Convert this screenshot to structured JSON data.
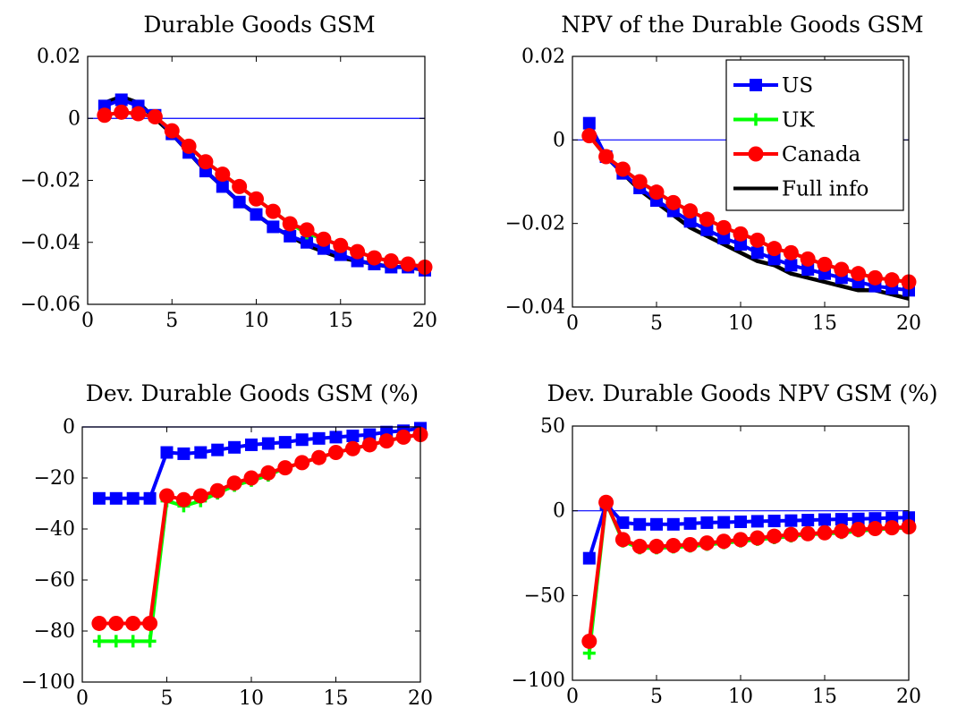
{
  "colors": {
    "US": "#0000ff",
    "UK": "#00ff00",
    "Canada": "#ff0000",
    "Full info": "#000000",
    "zero_line": "#0000ff"
  },
  "legend": {
    "placement": "top-right of second panel",
    "entries": [
      {
        "name": "US",
        "marker": "square"
      },
      {
        "name": "UK",
        "marker": "plus"
      },
      {
        "name": "Canada",
        "marker": "circle"
      },
      {
        "name": "Full info",
        "marker": "none"
      }
    ]
  },
  "chart_data": [
    {
      "type": "line",
      "title": "Durable Goods GSM",
      "xlim": [
        0,
        20
      ],
      "ylim": [
        -0.06,
        0.02
      ],
      "xticks": [
        0,
        5,
        10,
        15,
        20
      ],
      "yticks": [
        -0.06,
        -0.04,
        -0.02,
        0,
        0.02
      ],
      "ytick_labels": [
        "−0.06",
        "−0.04",
        "−0.02",
        "0",
        "0.02"
      ],
      "x": [
        1,
        2,
        3,
        4,
        5,
        6,
        7,
        8,
        9,
        10,
        11,
        12,
        13,
        14,
        15,
        16,
        17,
        18,
        19,
        20
      ],
      "series": [
        {
          "name": "Full info",
          "values": [
            0.005,
            0.007,
            0.005,
            0.0,
            -0.005,
            -0.011,
            -0.017,
            -0.022,
            -0.027,
            -0.031,
            -0.035,
            -0.038,
            -0.041,
            -0.043,
            -0.045,
            -0.046,
            -0.047,
            -0.048,
            -0.048,
            -0.049
          ]
        },
        {
          "name": "US",
          "values": [
            0.004,
            0.006,
            0.004,
            0.001,
            -0.005,
            -0.011,
            -0.017,
            -0.022,
            -0.027,
            -0.031,
            -0.035,
            -0.038,
            -0.04,
            -0.042,
            -0.044,
            -0.046,
            -0.047,
            -0.048,
            -0.048,
            -0.049
          ]
        },
        {
          "name": "UK",
          "values": [
            0.001,
            0.002,
            0.0015,
            0.0005,
            -0.004,
            -0.009,
            -0.014,
            -0.018,
            -0.022,
            -0.026,
            -0.03,
            -0.034,
            -0.037,
            -0.039,
            -0.041,
            -0.043,
            -0.045,
            -0.046,
            -0.047,
            -0.048
          ]
        },
        {
          "name": "Canada",
          "values": [
            0.001,
            0.002,
            0.0015,
            0.0005,
            -0.004,
            -0.009,
            -0.014,
            -0.018,
            -0.022,
            -0.026,
            -0.03,
            -0.034,
            -0.036,
            -0.039,
            -0.041,
            -0.043,
            -0.045,
            -0.046,
            -0.047,
            -0.048
          ]
        }
      ]
    },
    {
      "type": "line",
      "title": "NPV of the Durable Goods GSM",
      "xlim": [
        0,
        20
      ],
      "ylim": [
        -0.04,
        0.02
      ],
      "xticks": [
        0,
        5,
        10,
        15,
        20
      ],
      "yticks": [
        -0.04,
        -0.02,
        0,
        0.02
      ],
      "ytick_labels": [
        "−0.04",
        "−0.02",
        "0",
        "0.02"
      ],
      "x": [
        1,
        2,
        3,
        4,
        5,
        6,
        7,
        8,
        9,
        10,
        11,
        12,
        13,
        14,
        15,
        16,
        17,
        18,
        19,
        20
      ],
      "series": [
        {
          "name": "Full info",
          "values": [
            0.003,
            -0.004,
            -0.008,
            -0.012,
            -0.015,
            -0.018,
            -0.021,
            -0.023,
            -0.025,
            -0.027,
            -0.029,
            -0.03,
            -0.032,
            -0.033,
            -0.034,
            -0.035,
            -0.036,
            -0.036,
            -0.037,
            -0.038
          ]
        },
        {
          "name": "US",
          "values": [
            0.004,
            -0.004,
            -0.008,
            -0.0115,
            -0.0145,
            -0.017,
            -0.0195,
            -0.0215,
            -0.0235,
            -0.025,
            -0.027,
            -0.0285,
            -0.03,
            -0.031,
            -0.032,
            -0.033,
            -0.034,
            -0.035,
            -0.0355,
            -0.036
          ]
        },
        {
          "name": "UK",
          "values": [
            0.001,
            -0.004,
            -0.007,
            -0.01,
            -0.0125,
            -0.015,
            -0.017,
            -0.019,
            -0.021,
            -0.0225,
            -0.024,
            -0.026,
            -0.027,
            -0.0285,
            -0.0298,
            -0.031,
            -0.032,
            -0.033,
            -0.0335,
            -0.034
          ]
        },
        {
          "name": "Canada",
          "values": [
            0.001,
            -0.004,
            -0.007,
            -0.01,
            -0.0125,
            -0.015,
            -0.017,
            -0.019,
            -0.021,
            -0.0225,
            -0.024,
            -0.026,
            -0.027,
            -0.0285,
            -0.0298,
            -0.031,
            -0.032,
            -0.033,
            -0.0335,
            -0.034
          ]
        }
      ]
    },
    {
      "type": "line",
      "title": "Dev. Durable Goods GSM (%)",
      "xlim": [
        0,
        20
      ],
      "ylim": [
        -100,
        0
      ],
      "xticks": [
        0,
        5,
        10,
        15,
        20
      ],
      "yticks": [
        -100,
        -80,
        -60,
        -40,
        -20,
        0
      ],
      "ytick_labels": [
        "−100",
        "−80",
        "−60",
        "−40",
        "−20",
        "0"
      ],
      "x": [
        1,
        2,
        3,
        4,
        5,
        6,
        7,
        8,
        9,
        10,
        11,
        12,
        13,
        14,
        15,
        16,
        17,
        18,
        19,
        20
      ],
      "series": [
        {
          "name": "US",
          "values": [
            -28,
            -28,
            -28,
            -28,
            -10,
            -10.5,
            -10,
            -9,
            -8,
            -7,
            -6.5,
            -6,
            -5,
            -4.5,
            -4,
            -3.5,
            -3,
            -2,
            -1.5,
            -0.5
          ]
        },
        {
          "name": "UK",
          "values": [
            -84,
            -84,
            -84,
            -84,
            -29,
            -31,
            -29,
            -26,
            -23,
            -21,
            -19,
            -16,
            -14,
            -12,
            -10,
            -8.5,
            -7,
            -5.5,
            -4,
            -3
          ]
        },
        {
          "name": "Canada",
          "values": [
            -77,
            -77,
            -77,
            -77,
            -27,
            -28.5,
            -27,
            -25,
            -22,
            -20,
            -18,
            -16,
            -14,
            -12,
            -10,
            -8.5,
            -7,
            -5.5,
            -4,
            -3
          ]
        }
      ]
    },
    {
      "type": "line",
      "title": "Dev. Durable Goods NPV GSM (%)",
      "xlim": [
        0,
        20
      ],
      "ylim": [
        -100,
        50
      ],
      "xticks": [
        0,
        5,
        10,
        15,
        20
      ],
      "yticks": [
        -100,
        -50,
        0,
        50
      ],
      "ytick_labels": [
        "−100",
        "−50",
        "0",
        "50"
      ],
      "x": [
        1,
        2,
        3,
        4,
        5,
        6,
        7,
        8,
        9,
        10,
        11,
        12,
        13,
        14,
        15,
        16,
        17,
        18,
        19,
        20
      ],
      "series": [
        {
          "name": "US",
          "values": [
            -28,
            4,
            -7,
            -8,
            -8,
            -8,
            -7.5,
            -7,
            -6.8,
            -6.5,
            -6.2,
            -6,
            -5.8,
            -5.5,
            -5.2,
            -5,
            -4.8,
            -4.5,
            -4.2,
            -4
          ]
        },
        {
          "name": "UK",
          "values": [
            -84,
            5,
            -18,
            -22,
            -22,
            -21.5,
            -21,
            -20,
            -19,
            -18,
            -17,
            -16,
            -15,
            -14,
            -13.5,
            -13,
            -12,
            -11,
            -10.5,
            -10
          ]
        },
        {
          "name": "Canada",
          "values": [
            -77,
            5,
            -17,
            -21,
            -21,
            -20.5,
            -20,
            -19,
            -18,
            -17,
            -16,
            -15,
            -14,
            -13.5,
            -13,
            -12,
            -11,
            -10.5,
            -10,
            -9.5
          ]
        }
      ]
    }
  ]
}
